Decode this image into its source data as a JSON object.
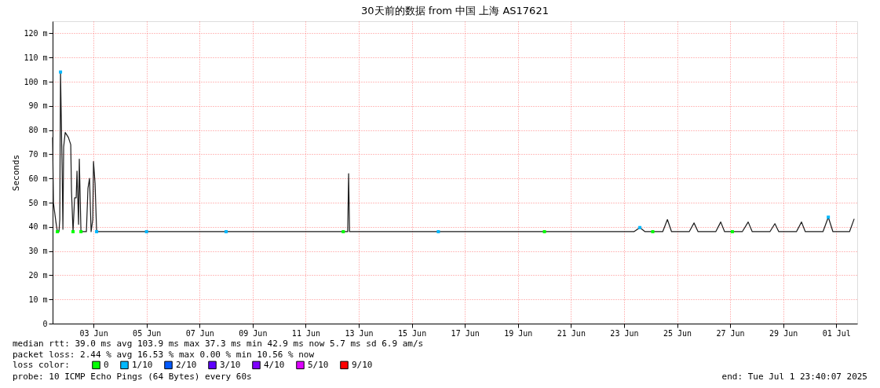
{
  "chart_data": {
    "type": "line",
    "title": "30天前的数据 from 中国 上海 AS17621",
    "ylabel": "Seconds",
    "legend_title": "loss color:",
    "xlim": [
      "2025-06-01T11:00",
      "2025-07-01T19:00"
    ],
    "xticks": [
      {
        "value": "2025-06-03",
        "label": "03 Jun"
      },
      {
        "value": "2025-06-05",
        "label": "05 Jun"
      },
      {
        "value": "2025-06-07",
        "label": "07 Jun"
      },
      {
        "value": "2025-06-09",
        "label": "09 Jun"
      },
      {
        "value": "2025-06-11",
        "label": "11 Jun"
      },
      {
        "value": "2025-06-13",
        "label": "13 Jun"
      },
      {
        "value": "2025-06-15",
        "label": "15 Jun"
      },
      {
        "value": "2025-06-17",
        "label": "17 Jun"
      },
      {
        "value": "2025-06-19",
        "label": "19 Jun"
      },
      {
        "value": "2025-06-21",
        "label": "21 Jun"
      },
      {
        "value": "2025-06-23",
        "label": "23 Jun"
      },
      {
        "value": "2025-06-25",
        "label": "25 Jun"
      },
      {
        "value": "2025-06-27",
        "label": "27 Jun"
      },
      {
        "value": "2025-06-29",
        "label": "29 Jun"
      },
      {
        "value": "2025-07-01",
        "label": "01 Jul"
      }
    ],
    "ylim": [
      0,
      125
    ],
    "yticks": [
      0,
      {
        "value": 10,
        "label": "10 m"
      },
      {
        "value": 20,
        "label": "20 m"
      },
      {
        "value": 30,
        "label": "30 m"
      },
      {
        "value": 40,
        "label": "40 m"
      },
      {
        "value": 50,
        "label": "50 m"
      },
      {
        "value": 60,
        "label": "60 m"
      },
      {
        "value": 70,
        "label": "70 m"
      },
      {
        "value": 80,
        "label": "80 m"
      },
      {
        "value": 90,
        "label": "90 m"
      },
      {
        "value": 100,
        "label": "100 m"
      },
      {
        "value": 110,
        "label": "110 m"
      },
      {
        "value": 120,
        "label": "120 m"
      }
    ],
    "grid": true,
    "legend": "bottom",
    "series": [
      {
        "color": "#1a1a1a",
        "x": [
          "2025-06-01T11:00",
          "2025-06-01T11:45",
          "2025-06-01T14:00",
          "2025-06-01T15:20",
          "2025-06-01T16:45",
          "2025-06-01T17:30",
          "2025-06-01T18:10",
          "2025-06-01T19:35",
          "2025-06-01T20:20",
          "2025-06-01T21:00",
          "2025-06-01T22:25",
          "2025-06-02T01:15",
          "2025-06-02T03:25",
          "2025-06-02T04:05",
          "2025-06-02T05:30",
          "2025-06-02T06:55",
          "2025-06-02T08:20",
          "2025-06-02T09:05",
          "2025-06-02T10:30",
          "2025-06-02T11:10",
          "2025-06-02T12:40",
          "2025-06-02T17:35",
          "2025-06-02T19:00",
          "2025-06-02T20:25",
          "2025-06-02T21:50",
          "2025-06-02T23:20",
          "2025-06-03T00:00",
          "2025-06-03T01:25",
          "2025-06-03T02:50",
          "2025-06-05T00:00",
          "2025-06-08T00:00",
          "2025-06-11T00:00",
          "2025-06-12T14:00",
          "2025-06-12T14:50",
          "2025-06-12T15:40",
          "2025-06-16T00:00",
          "2025-06-20T00:00",
          "2025-06-23T09:00",
          "2025-06-23T14:20",
          "2025-06-23T19:00",
          "2025-06-24T11:00",
          "2025-06-24T15:15",
          "2025-06-24T19:00",
          "2025-06-25T11:00",
          "2025-06-25T15:20",
          "2025-06-25T19:00",
          "2025-06-26T11:00",
          "2025-06-26T15:30",
          "2025-06-26T19:00",
          "2025-06-27T11:00",
          "2025-06-27T16:20",
          "2025-06-27T20:00",
          "2025-06-28T12:00",
          "2025-06-28T16:30",
          "2025-06-28T20:00",
          "2025-06-29T12:00",
          "2025-06-29T16:35",
          "2025-06-29T20:00",
          "2025-06-30T12:00",
          "2025-06-30T16:50",
          "2025-06-30T21:00",
          "2025-07-01T12:00",
          "2025-07-01T16:15"
        ],
        "values": [
          77,
          50,
          42,
          38,
          38,
          43,
          104,
          65,
          39,
          73,
          79,
          77,
          74,
          55,
          38,
          52,
          52,
          63,
          41,
          68,
          38,
          38,
          56,
          60,
          38,
          43,
          67,
          58,
          38,
          38,
          38,
          38,
          38,
          62,
          38,
          38,
          38,
          38,
          39.7,
          38,
          38,
          43,
          38,
          38,
          41.6,
          38,
          38,
          42,
          38,
          38,
          42,
          38,
          38,
          41.3,
          38,
          38,
          42,
          38,
          38,
          44,
          38,
          38,
          43.3
        ]
      },
      {
        "type": "scatter",
        "name": "0",
        "color": "#00ff00",
        "x": [
          "2025-06-01T15:20",
          "2025-06-02T05:30",
          "2025-06-02T12:40",
          "2025-06-12T10:00",
          "2025-06-20T00:00",
          "2025-06-24T02:00",
          "2025-06-27T02:00"
        ],
        "values": [
          38,
          38,
          38,
          38,
          38,
          38,
          38
        ]
      },
      {
        "type": "scatter",
        "name": "1/10",
        "color": "#00b8ff",
        "x": [
          "2025-06-01T18:10",
          "2025-06-03T02:50",
          "2025-06-05T00:00",
          "2025-06-08T00:00",
          "2025-06-16T00:00",
          "2025-06-23T14:20",
          "2025-06-30T16:50"
        ],
        "values": [
          104,
          38,
          38,
          38,
          38,
          39.7,
          44
        ]
      },
      {
        "type": "scatter",
        "name": "2/10",
        "color": "#0059ff"
      },
      {
        "type": "scatter",
        "name": "3/10",
        "color": "#5e00ff"
      },
      {
        "type": "scatter",
        "name": "4/10",
        "color": "#7e00ff"
      },
      {
        "type": "scatter",
        "name": "5/10",
        "color": "#dd00ff"
      },
      {
        "type": "scatter",
        "name": "9/10",
        "color": "#ff0000"
      }
    ],
    "annotations": [
      "median rtt:  39.0 ms avg  103.9 ms max  37.3 ms min  42.9 ms now  5.7 ms sd  6.9   am/s",
      "packet loss: 2.44 % avg  16.53 % max  0.00 % min  10.56 % now",
      "probe:       10 ICMP Echo Pings (64 Bytes) every 60s",
      "end: Tue Jul  1 23:40:07 2025"
    ]
  }
}
